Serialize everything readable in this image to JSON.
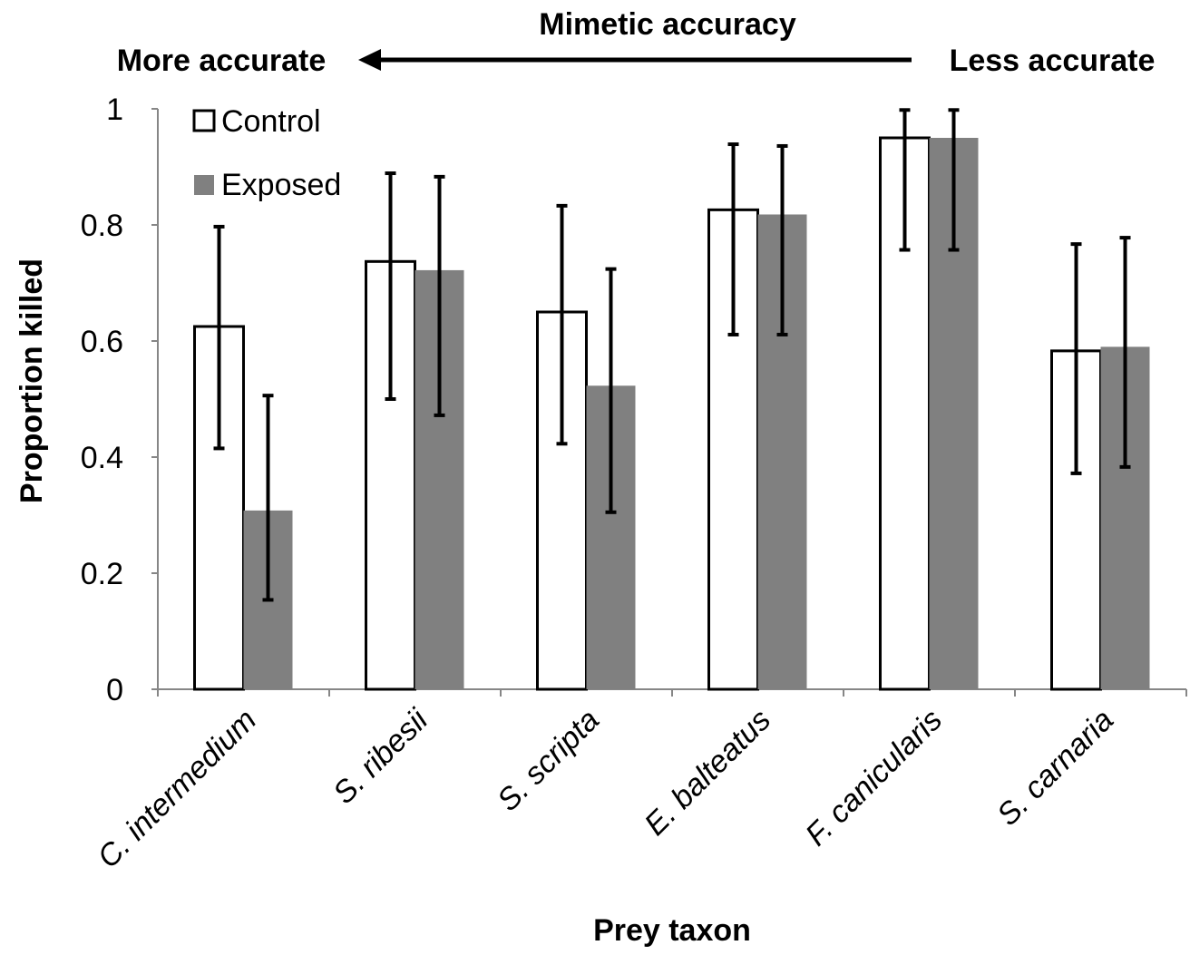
{
  "chart_data": {
    "type": "bar",
    "title": "",
    "annotation": {
      "top": "Mimetic accuracy",
      "left": "More accurate",
      "right": "Less accurate",
      "arrow_direction": "left"
    },
    "xlabel": "Prey taxon",
    "ylabel": "Proportion killed",
    "ylim": [
      0,
      1
    ],
    "yticks": [
      "0",
      "0.2",
      "0.4",
      "0.6",
      "0.8",
      "1"
    ],
    "categories": [
      "C. intermedium",
      "S. ribesii",
      "S. scripta",
      "E. balteatus",
      "F. canicularis",
      "S. carnaria"
    ],
    "legend_position": "top-left",
    "grid": false,
    "series": [
      {
        "name": "Control",
        "color": "#ffffff",
        "stroke": "#000000",
        "values": [
          0.625,
          0.737,
          0.65,
          0.826,
          0.95,
          0.583
        ],
        "error_low": [
          0.415,
          0.5,
          0.423,
          0.611,
          0.757,
          0.372
        ],
        "error_high": [
          0.797,
          0.889,
          0.833,
          0.939,
          0.998,
          0.767
        ]
      },
      {
        "name": "Exposed",
        "color": "#808080",
        "stroke": "none",
        "values": [
          0.308,
          0.722,
          0.523,
          0.818,
          0.95,
          0.59
        ],
        "error_low": [
          0.154,
          0.472,
          0.305,
          0.611,
          0.757,
          0.383
        ],
        "error_high": [
          0.506,
          0.883,
          0.724,
          0.936,
          0.998,
          0.778
        ]
      }
    ]
  }
}
